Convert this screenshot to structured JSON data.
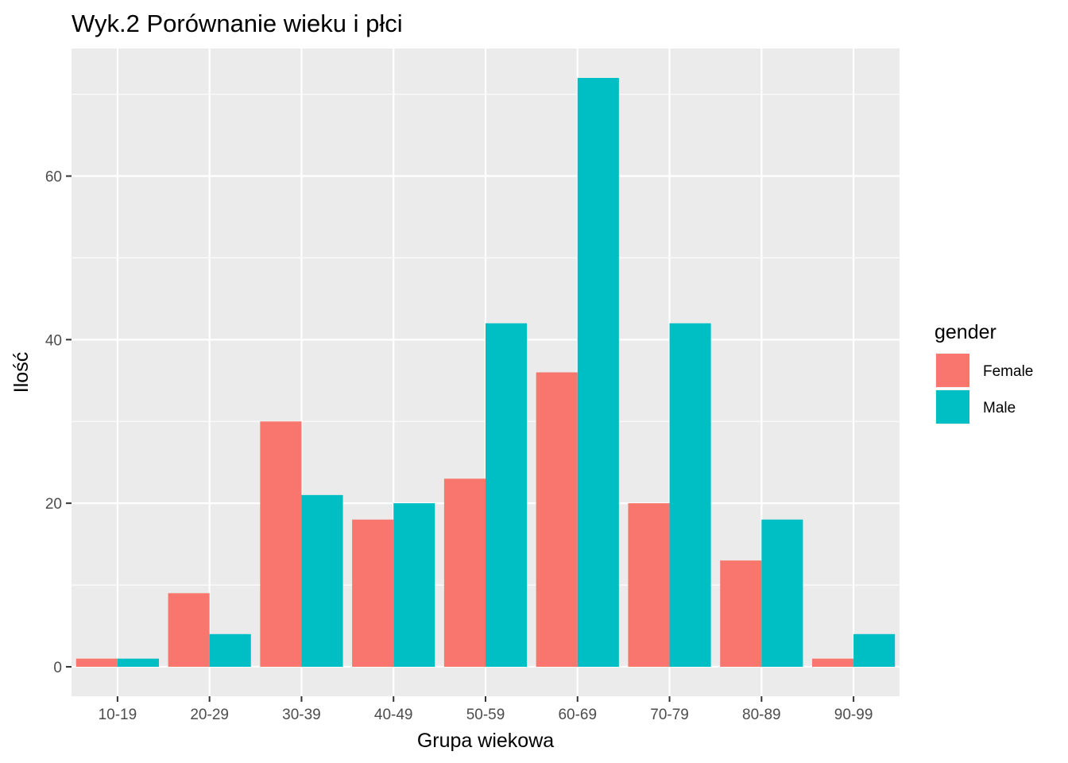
{
  "chart_data": {
    "type": "bar",
    "title": "Wyk.2 Porównanie wieku i płci",
    "xlabel": "Grupa wiekowa",
    "ylabel": "Ilość",
    "categories": [
      "10-19",
      "20-29",
      "30-39",
      "40-49",
      "50-59",
      "60-69",
      "70-79",
      "80-89",
      "90-99"
    ],
    "series": [
      {
        "name": "Female",
        "color": "#F8766D",
        "values": [
          1,
          9,
          30,
          18,
          23,
          36,
          20,
          13,
          1
        ]
      },
      {
        "name": "Male",
        "color": "#00BFC4",
        "values": [
          1,
          4,
          21,
          20,
          42,
          72,
          42,
          18,
          4
        ]
      }
    ],
    "ylim": [
      -3.6,
      75.6
    ],
    "yticks": [
      0,
      20,
      40,
      60
    ],
    "yticks_minor": [
      10,
      30,
      50,
      70
    ],
    "grid": true,
    "legend": {
      "title": "gender",
      "position": "right"
    },
    "panel_background": "#EBEBEB",
    "gridline_color": "#FFFFFF"
  }
}
